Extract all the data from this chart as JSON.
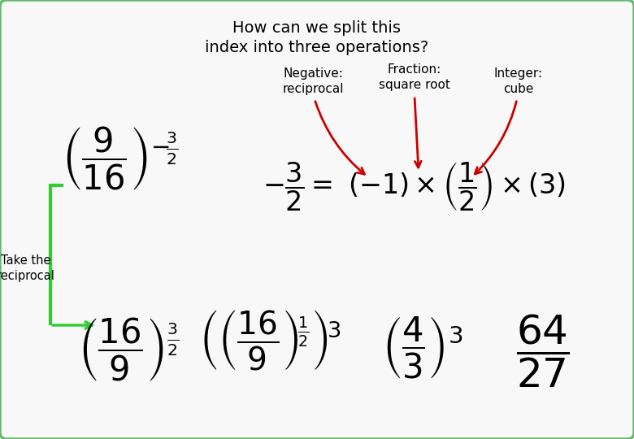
{
  "title_line1": "How can we split this",
  "title_line2": "index into three operations?",
  "bg_color": "#f8f8f8",
  "border_color": "#66bb6a",
  "text_color": "#000000",
  "green_color": "#33cc33",
  "red_color": "#cc0000",
  "label_negative": "Negative:\nreciprocal",
  "label_fraction": "Fraction:\nsquare root",
  "label_integer": "Integer:\ncube",
  "take_reciprocal": "Take the\nreciprocal",
  "figw": 7.8,
  "figh": 5.4,
  "dpi": 100
}
